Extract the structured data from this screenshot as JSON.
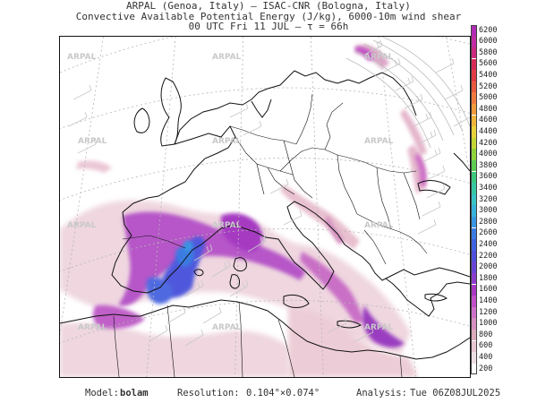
{
  "title": {
    "line1": "ARPAL (Genoa, Italy)  –  ISAC-CNR (Bologna, Italy)",
    "line2": "Convective Available Potential Energy (J/kg), 6000-10m wind shear",
    "line3": "00 UTC Fri 11 JUL  –  τ = 66h"
  },
  "watermark": "ARPAL",
  "colorbar": {
    "levels": [
      "200",
      "400",
      "600",
      "800",
      "1000",
      "1200",
      "1400",
      "1600",
      "1800",
      "2000",
      "2200",
      "2400",
      "2600",
      "2800",
      "3000",
      "3200",
      "3400",
      "3600",
      "3800",
      "4000",
      "4200",
      "4400",
      "4600",
      "4800",
      "5000",
      "5200",
      "5400",
      "5600",
      "5800",
      "6000",
      "6200"
    ],
    "colors": [
      "#ffffff",
      "#eedfe4",
      "#e6c6d0",
      "#dcaabb",
      "#d48fc0",
      "#cd70c8",
      "#c04fc8",
      "#a838c4",
      "#8c3ccc",
      "#6a44d4",
      "#4f50dc",
      "#3f62e0",
      "#3a7ce2",
      "#3896e2",
      "#38b0dc",
      "#38c4c4",
      "#36c8a2",
      "#3ac87c",
      "#5ccc50",
      "#90d23a",
      "#c4d636",
      "#e8d238",
      "#f0b63a",
      "#f09a3c",
      "#ee7a3e",
      "#e85a40",
      "#e03c44",
      "#d82a58",
      "#cc2a7e",
      "#c02ca2",
      "#b02cb6"
    ]
  },
  "footer": {
    "model_label": "Model:",
    "model_value": "bolam",
    "resolution_label": "Resolution:",
    "resolution_value": "0.104°×0.074°",
    "analysis_label": "Analysis:",
    "analysis_value": "Tue 06Z08JUL2025"
  }
}
